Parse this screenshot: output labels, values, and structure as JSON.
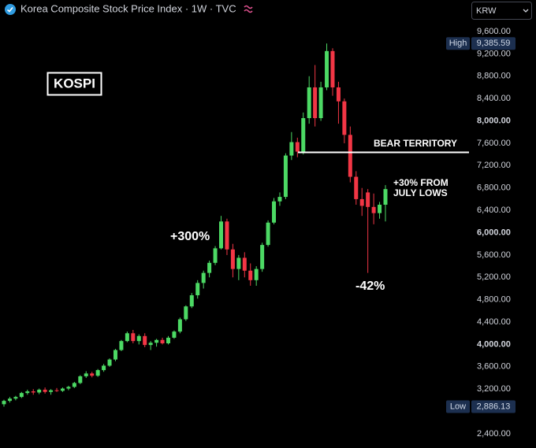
{
  "chart_data": {
    "type": "candlestick",
    "title": "Korea Composite Stock Price Index · 1W · TVC",
    "currency": "KRW",
    "badge": "KOSPI",
    "up_color": "#4cd964",
    "down_color": "#f23645",
    "open": [
      2930,
      2990,
      3030,
      3060,
      3130,
      3160,
      3140,
      3190,
      3150,
      3180,
      3170,
      3210,
      3240,
      3310,
      3430,
      3480,
      3440,
      3540,
      3620,
      3730,
      3900,
      4060,
      4200,
      4060,
      4150,
      3990,
      4030,
      4080,
      4020,
      4120,
      4230,
      4450,
      4680,
      4880,
      5100,
      5280,
      5460,
      5720,
      6200,
      5700,
      5350,
      5550,
      5320,
      5150,
      5350,
      5780,
      6180,
      6560,
      6640,
      7380,
      7620,
      7450,
      8050,
      8600,
      8050,
      8600,
      9250,
      8600,
      8350,
      7750,
      7000,
      6600,
      6720,
      6460,
      6350,
      6500
    ],
    "high": [
      3010,
      3060,
      3080,
      3150,
      3190,
      3200,
      3210,
      3230,
      3200,
      3220,
      3230,
      3260,
      3330,
      3450,
      3520,
      3510,
      3560,
      3650,
      3750,
      3920,
      4080,
      4230,
      4260,
      4180,
      4200,
      4060,
      4100,
      4120,
      4150,
      4250,
      4480,
      4700,
      4920,
      5150,
      5320,
      5500,
      5760,
      6300,
      6250,
      5800,
      5600,
      5650,
      5450,
      5400,
      5820,
      6220,
      6620,
      6720,
      7420,
      7800,
      7700,
      8150,
      8800,
      9000,
      8700,
      9385.59,
      9300,
      8700,
      8400,
      7900,
      7100,
      6800,
      6780,
      6700,
      6550,
      6850
    ],
    "low": [
      2886.13,
      2960,
      3000,
      3040,
      3100,
      3100,
      3110,
      3120,
      3100,
      3150,
      3150,
      3180,
      3220,
      3290,
      3400,
      3410,
      3420,
      3510,
      3600,
      3700,
      3880,
      4040,
      4020,
      4000,
      3950,
      3900,
      3960,
      4000,
      4000,
      4100,
      4200,
      4420,
      4650,
      4820,
      5000,
      5200,
      5420,
      5700,
      5600,
      5200,
      5150,
      5200,
      5050,
      5050,
      5300,
      5750,
      6150,
      6480,
      6600,
      7300,
      7350,
      7400,
      7950,
      7900,
      8000,
      8550,
      8450,
      7950,
      7600,
      6900,
      6500,
      6300,
      5280,
      6150,
      6250,
      6200
    ],
    "close": [
      2990,
      3030,
      3060,
      3130,
      3160,
      3140,
      3190,
      3150,
      3180,
      3170,
      3210,
      3240,
      3310,
      3430,
      3480,
      3440,
      3540,
      3620,
      3730,
      3900,
      4060,
      4200,
      4060,
      4150,
      3990,
      4030,
      4080,
      4020,
      4120,
      4230,
      4450,
      4680,
      4880,
      5100,
      5280,
      5460,
      5720,
      6200,
      5700,
      5350,
      5550,
      5320,
      5150,
      5350,
      5780,
      6180,
      6560,
      6640,
      7380,
      7620,
      7450,
      8050,
      8600,
      8050,
      8600,
      9250,
      8600,
      8350,
      7750,
      7000,
      6600,
      6480,
      6460,
      6350,
      6500,
      6780
    ],
    "ylim": [
      2400,
      9600
    ],
    "yticks": [
      {
        "value": 2400,
        "label": "2,400.00"
      },
      {
        "value": 3200,
        "label": "3,200.00"
      },
      {
        "value": 3600,
        "label": "3,600.00"
      },
      {
        "value": 4000,
        "label": "4,000.00"
      },
      {
        "value": 4400,
        "label": "4,400.00"
      },
      {
        "value": 4800,
        "label": "4,800.00"
      },
      {
        "value": 5200,
        "label": "5,200.00"
      },
      {
        "value": 5600,
        "label": "5,600.00"
      },
      {
        "value": 6000,
        "label": "6,000.00"
      },
      {
        "value": 6400,
        "label": "6,400.00"
      },
      {
        "value": 6800,
        "label": "6,800.00"
      },
      {
        "value": 7200,
        "label": "7,200.00"
      },
      {
        "value": 7600,
        "label": "7,600.00"
      },
      {
        "value": 8000,
        "label": "8,000.00"
      },
      {
        "value": 8400,
        "label": "8,400.00"
      },
      {
        "value": 8800,
        "label": "8,800.00"
      },
      {
        "value": 9200,
        "label": "9,200.00"
      },
      {
        "value": 9600,
        "label": "9,600.00"
      }
    ],
    "high_marker": {
      "name": "High",
      "value": 9385.59,
      "value_label": "9,385.59"
    },
    "low_marker": {
      "name": "Low",
      "value": 2886.13,
      "value_label": "2,886.13"
    },
    "annotations": [
      {
        "text": "+300%"
      },
      {
        "text": "BEAR TERRITORY"
      },
      {
        "lines": [
          "+30% FROM",
          "JULY LOWS"
        ]
      },
      {
        "text": "-42%"
      }
    ]
  }
}
